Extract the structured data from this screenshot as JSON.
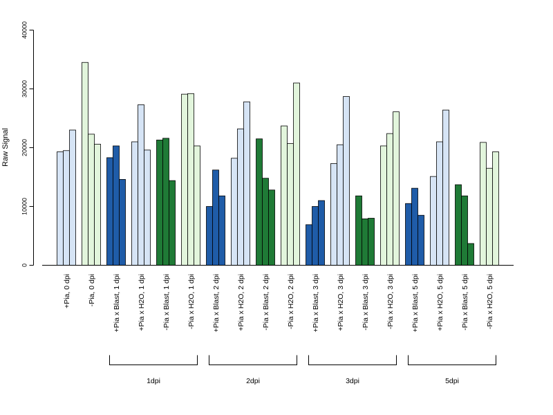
{
  "chart_data": {
    "type": "bar",
    "ylabel": "Raw Signal",
    "ylim": [
      0,
      40000
    ],
    "yticks": [
      "0",
      "10000",
      "20000",
      "30000",
      "40000"
    ],
    "grid": false,
    "legend": "none",
    "colors": {
      "pia_plus": "#d6e4f5",
      "pia_plus_blast": "#1f5ca8",
      "pia_minus": "#e2f5dc",
      "pia_minus_blast": "#1f7a36"
    },
    "categories": [
      {
        "label": "+Pia, 0 dpi",
        "color": "pia_plus",
        "values": [
          19300,
          19500,
          23000
        ]
      },
      {
        "label": "-Pia, 0 dpi",
        "color": "pia_minus",
        "values": [
          34500,
          22300,
          20600
        ]
      },
      {
        "label": "+Pia x Blast, 1 dpi",
        "color": "pia_plus_blast",
        "values": [
          18300,
          20300,
          14600
        ]
      },
      {
        "label": "+Pia x H2O, 1 dpi",
        "color": "pia_plus",
        "values": [
          21000,
          27300,
          19600
        ]
      },
      {
        "label": "-Pia x Blast, 1 dpi",
        "color": "pia_minus_blast",
        "values": [
          21300,
          21600,
          14400
        ]
      },
      {
        "label": "-Pia x H2O, 1 dpi",
        "color": "pia_minus",
        "values": [
          29100,
          29200,
          20300
        ]
      },
      {
        "label": "+Pia x Blast, 2 dpi",
        "color": "pia_plus_blast",
        "values": [
          10000,
          16200,
          11800
        ]
      },
      {
        "label": "+Pia x H2O, 2 dpi",
        "color": "pia_plus",
        "values": [
          18200,
          23200,
          27800
        ]
      },
      {
        "label": "-Pia x Blast, 2 dpi",
        "color": "pia_minus_blast",
        "values": [
          21500,
          14800,
          12800
        ]
      },
      {
        "label": "-Pia x H2O, 2 dpi",
        "color": "pia_minus",
        "values": [
          23700,
          20700,
          31000
        ]
      },
      {
        "label": "+Pia x Blast, 3 dpi",
        "color": "pia_plus_blast",
        "values": [
          6900,
          10000,
          11000
        ]
      },
      {
        "label": "+Pia x H2O, 3 dpi",
        "color": "pia_plus",
        "values": [
          17300,
          20500,
          28700
        ]
      },
      {
        "label": "-Pia x Blast, 3 dpi",
        "color": "pia_minus_blast",
        "values": [
          11800,
          7900,
          8000
        ]
      },
      {
        "label": "-Pia x H2O, 3 dpi",
        "color": "pia_minus",
        "values": [
          20300,
          22400,
          26100
        ]
      },
      {
        "label": "+Pia x Blast, 5 dpi",
        "color": "pia_plus_blast",
        "values": [
          10500,
          13100,
          8500
        ]
      },
      {
        "label": "+Pia x H2O, 5 dpi",
        "color": "pia_plus",
        "values": [
          15100,
          21000,
          26400
        ]
      },
      {
        "label": "-Pia x Blast, 5 dpi",
        "color": "pia_minus_blast",
        "values": [
          13700,
          11800,
          3700
        ]
      },
      {
        "label": "-Pia x H2O, 5 dpi",
        "color": "pia_minus",
        "values": [
          20900,
          16500,
          19300
        ]
      }
    ],
    "groups": [
      {
        "label": "1dpi",
        "from": 2,
        "to": 5
      },
      {
        "label": "2dpi",
        "from": 6,
        "to": 9
      },
      {
        "label": "3dpi",
        "from": 10,
        "to": 13
      },
      {
        "label": "5dpi",
        "from": 14,
        "to": 17
      }
    ]
  }
}
